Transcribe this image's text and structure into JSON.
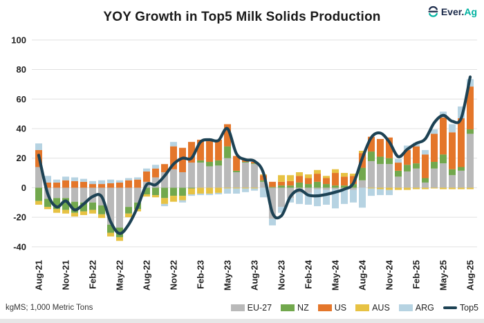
{
  "header": {
    "title": "YOY Growth in Top5 Milk Solids Production",
    "logo": {
      "text_primary": "Ever.",
      "text_accent": "Ag",
      "accent_color": "#00b2a0",
      "primary_color": "#1b2a4a"
    }
  },
  "footnote": "kgMS; 1,000 Metric Tons",
  "axes": {
    "y_ticks": [
      100,
      80,
      60,
      40,
      20,
      0,
      -20,
      -40
    ],
    "x_tick_labels": [
      "Aug-21",
      "Nov-21",
      "Feb-22",
      "May-22",
      "Aug-22",
      "Nov-22",
      "Feb-23",
      "May-23",
      "Aug-23",
      "Nov-23",
      "Feb-24",
      "May-24",
      "Aug-24",
      "Nov-24",
      "Feb-25",
      "May-25",
      "Aug-25"
    ]
  },
  "colors": {
    "background": "#ffffff",
    "gridline": "#e0e0e0",
    "axis_text": "#1f1f1f",
    "eu27": "#b9b9b9",
    "nz": "#72a84d",
    "us": "#e4762a",
    "aus": "#e7c243",
    "arg": "#b6d3e2",
    "top5_line": "#1d4254"
  },
  "legend": {
    "items": [
      {
        "label": "EU-27",
        "color": "#b9b9b9",
        "type": "bar"
      },
      {
        "label": "NZ",
        "color": "#72a84d",
        "type": "bar"
      },
      {
        "label": "US",
        "color": "#e4762a",
        "type": "bar"
      },
      {
        "label": "AUS",
        "color": "#e7c243",
        "type": "bar"
      },
      {
        "label": "ARG",
        "color": "#b6d3e2",
        "type": "bar"
      },
      {
        "label": "Top5",
        "color": "#1d4254",
        "type": "line"
      }
    ]
  },
  "chart_data": {
    "type": "bar",
    "subtype": "stacked-bar-with-line-overlay",
    "title": "YOY Growth in Top5 Milk Solids Production",
    "xlabel": "",
    "ylabel": "",
    "units_note": "kgMS; 1,000 Metric Tons",
    "ylim": [
      -40,
      100
    ],
    "grid": true,
    "legend_position": "bottom-right",
    "x": [
      "Aug-21",
      "Sep-21",
      "Oct-21",
      "Nov-21",
      "Dec-21",
      "Jan-22",
      "Feb-22",
      "Mar-22",
      "Apr-22",
      "May-22",
      "Jun-22",
      "Jul-22",
      "Aug-22",
      "Sep-22",
      "Oct-22",
      "Nov-22",
      "Dec-22",
      "Jan-23",
      "Feb-23",
      "Mar-23",
      "Apr-23",
      "May-23",
      "Jun-23",
      "Jul-23",
      "Aug-23",
      "Sep-23",
      "Oct-23",
      "Nov-23",
      "Dec-23",
      "Jan-24",
      "Feb-24",
      "Mar-24",
      "Apr-24",
      "May-24",
      "Jun-24",
      "Jul-24",
      "Aug-24",
      "Sep-24",
      "Oct-24",
      "Nov-24",
      "Dec-24",
      "Jan-25",
      "Feb-25",
      "Mar-25",
      "Apr-25",
      "May-25",
      "Jun-25",
      "Jul-25",
      "Aug-25"
    ],
    "x_tick_every": 3,
    "series": [
      {
        "name": "EU-27",
        "color": "#b9b9b9",
        "values": [
          14,
          -7.5,
          -7,
          -7,
          -9.5,
          -10,
          -10,
          -12,
          -25,
          -27,
          -13,
          -10,
          4,
          7,
          10.5,
          12.5,
          10.5,
          17,
          17,
          14.5,
          15,
          20,
          10.5,
          17,
          16,
          4,
          -21,
          -13,
          -7,
          -3.5,
          -3.5,
          -1,
          -1.5,
          -1,
          -1,
          -1.5,
          5,
          18,
          16,
          16,
          7.5,
          11,
          13,
          3.5,
          13,
          16.5,
          8.5,
          11.5,
          36.5
        ]
      },
      {
        "name": "NZ",
        "color": "#72a84d",
        "values": [
          -9,
          -5.5,
          -7.5,
          -8,
          -7.5,
          -6,
          -5,
          -6,
          -5.5,
          -6.5,
          -4.5,
          -4.5,
          -4.5,
          -5,
          -7,
          -5.5,
          -5.5,
          -0.5,
          1.5,
          3,
          3.5,
          8,
          1,
          0.5,
          0.5,
          1,
          0.5,
          1.5,
          1.5,
          3.5,
          2.5,
          4,
          2.5,
          1.5,
          1.5,
          2.5,
          8.5,
          6.5,
          5,
          4,
          4,
          4.5,
          3.5,
          3,
          4.5,
          6,
          4,
          2.5,
          3
        ]
      },
      {
        "name": "US",
        "color": "#e4762a",
        "values": [
          11.5,
          3.5,
          3.5,
          5,
          4.5,
          4,
          2.5,
          2.5,
          3,
          3.5,
          5,
          5.5,
          7,
          6,
          5.5,
          15.5,
          16.5,
          14,
          14,
          14,
          14,
          15,
          10,
          1.5,
          1,
          3.5,
          3.5,
          2.5,
          3,
          4.5,
          4,
          5.5,
          4,
          8.5,
          6,
          5.5,
          10,
          10,
          12,
          14,
          5.5,
          10,
          11.5,
          16,
          19,
          25,
          25,
          33,
          29
        ]
      },
      {
        "name": "AUS",
        "color": "#e7c243",
        "values": [
          -2.5,
          -1.5,
          -2.5,
          -2.5,
          -2.5,
          -2.5,
          -2.5,
          -2.5,
          -2.5,
          -2.5,
          -2.5,
          -1.5,
          -1.5,
          -1.5,
          -4,
          -4,
          -3,
          -4,
          -4,
          -4,
          -3.5,
          -0.5,
          -0.5,
          -0.5,
          -0.5,
          0.5,
          0,
          4.5,
          4,
          2.5,
          2.5,
          2.5,
          1.5,
          2.5,
          2.5,
          1.5,
          1.5,
          -0.5,
          -1,
          -1.5,
          -1.5,
          -1.5,
          -1,
          -1,
          -0.5,
          -1,
          -1,
          -1,
          -1
        ]
      },
      {
        "name": "ARG",
        "color": "#b6d3e2",
        "values": [
          4.5,
          4.5,
          2,
          2.5,
          2.5,
          2,
          2,
          2.5,
          2.5,
          1.5,
          1.5,
          1.5,
          2,
          2.5,
          -1.5,
          3,
          -1.5,
          -1,
          -1,
          -1,
          -1,
          -3.5,
          -3.5,
          -2.5,
          -1.5,
          -6.5,
          -4.5,
          -4,
          -3,
          -7.5,
          -8,
          -11.5,
          -10,
          -13,
          -10,
          -8.5,
          -13.5,
          -5,
          -4,
          -3.5,
          2.5,
          3,
          2.5,
          3,
          3,
          4,
          5.5,
          8,
          5
        ]
      }
    ],
    "line_series": {
      "name": "Top5",
      "color": "#1d4254",
      "values": [
        22,
        -4,
        -13,
        -9,
        -15,
        -11,
        -6,
        -6,
        -23,
        -31,
        -25,
        -13,
        2,
        2,
        8,
        16,
        20,
        20,
        31,
        32.5,
        32,
        40,
        23,
        19,
        18,
        10,
        -17,
        -19,
        -6,
        -1.5,
        -5,
        -5.5,
        -4.5,
        -3,
        -1,
        3,
        20,
        34,
        37,
        31,
        21,
        26,
        30,
        33,
        44,
        49,
        45,
        47,
        75
      ]
    }
  }
}
